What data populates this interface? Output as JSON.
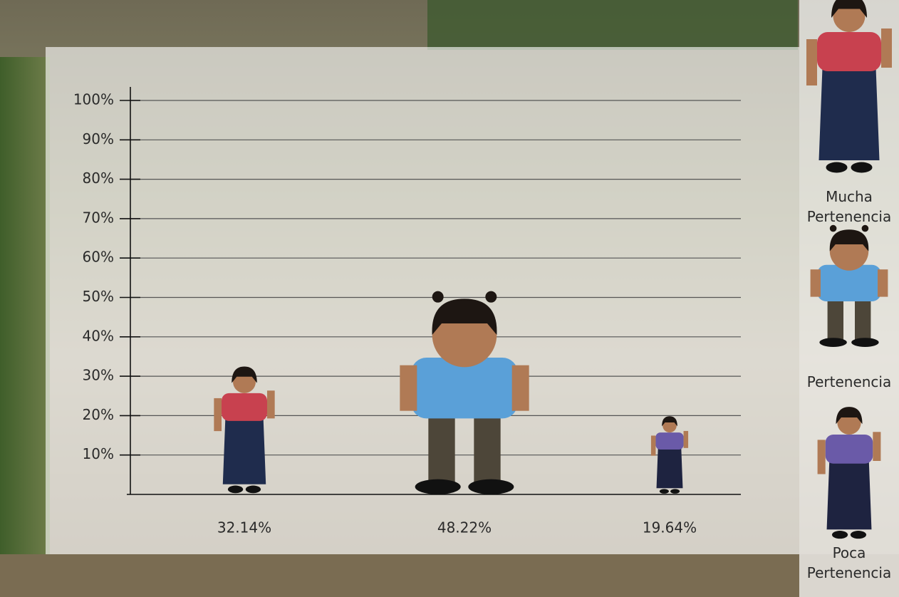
{
  "chart_data": {
    "type": "pictogram",
    "categories": [
      "Mucha Pertenencia",
      "Pertenencia",
      "Poca Pertenencia"
    ],
    "values": [
      32.14,
      48.22,
      19.64
    ],
    "value_labels": [
      "32.14%",
      "48.22%",
      "19.64%"
    ],
    "colors": [
      "#c8414f",
      "#5aa0d8",
      "#6a5aa8"
    ],
    "ylim": [
      0,
      100
    ],
    "yticks": [
      {
        "value": 10,
        "label": "10%"
      },
      {
        "value": 20,
        "label": "20%"
      },
      {
        "value": 30,
        "label": "30%"
      },
      {
        "value": 40,
        "label": "40%"
      },
      {
        "value": 50,
        "label": "50%"
      },
      {
        "value": 60,
        "label": "60%"
      },
      {
        "value": 70,
        "label": "70%"
      },
      {
        "value": 80,
        "label": "80%"
      },
      {
        "value": 90,
        "label": "90%"
      },
      {
        "value": 100,
        "label": "100%"
      }
    ],
    "grid": true
  }
}
